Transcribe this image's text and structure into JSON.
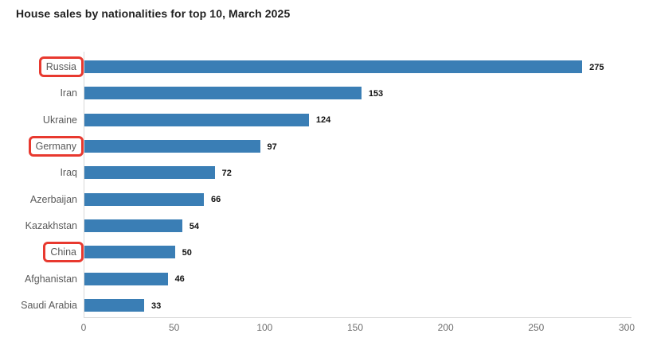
{
  "title": "House sales by nationalities for top 10, March 2025",
  "chart_data": {
    "type": "bar",
    "orientation": "horizontal",
    "title": "House sales by nationalities for top 10, March 2025",
    "categories": [
      "Russia",
      "Iran",
      "Ukraine",
      "Germany",
      "Iraq",
      "Azerbaijan",
      "Kazakhstan",
      "China",
      "Afghanistan",
      "Saudi Arabia"
    ],
    "values": [
      275,
      153,
      124,
      97,
      72,
      66,
      54,
      50,
      46,
      33
    ],
    "value_labels_shown": true,
    "highlighted_categories": [
      "Russia",
      "Germany",
      "China"
    ],
    "x_ticks": [
      0,
      50,
      100,
      150,
      200,
      250,
      300
    ],
    "xlim": [
      0,
      300
    ],
    "xlabel": "",
    "ylabel": "",
    "grid": false,
    "legend": false,
    "bar_color": "#3a7eb5",
    "highlight_box_color": "#e8392f",
    "axis_line_color": "#d9d9d9",
    "category_label_color": "#595959",
    "value_label_color": "#111111",
    "tick_label_color": "#6e6e6e"
  }
}
